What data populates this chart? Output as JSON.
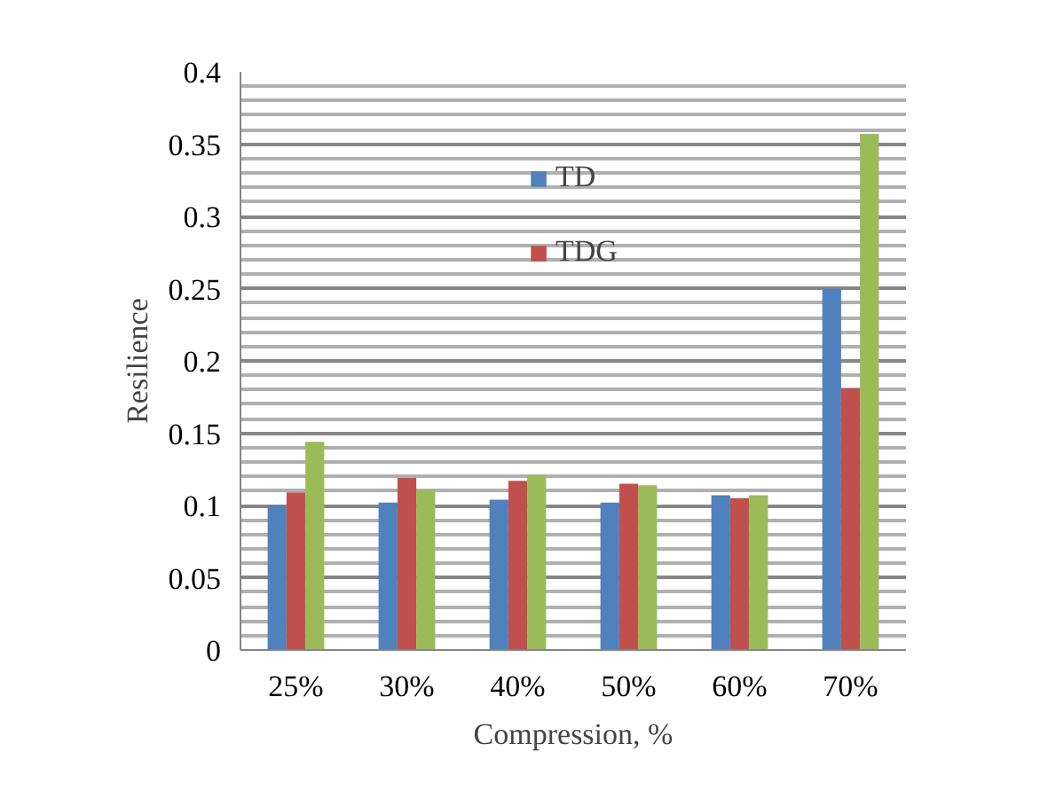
{
  "chart_data": {
    "type": "bar",
    "xlabel": "Compression, %",
    "ylabel": "Resilience",
    "categories": [
      "25%",
      "30%",
      "40%",
      "50%",
      "60%",
      "70%"
    ],
    "series": [
      {
        "name": "TD",
        "color": "#4f81bd",
        "values": [
          0.1,
          0.102,
          0.104,
          0.102,
          0.107,
          0.25
        ]
      },
      {
        "name": "TDG",
        "color": "#c0504d",
        "values": [
          0.109,
          0.119,
          0.117,
          0.115,
          0.105,
          0.181
        ]
      },
      {
        "color": "#9bbb59",
        "values": [
          0.144,
          0.111,
          0.121,
          0.114,
          0.107,
          0.357
        ]
      }
    ],
    "ylim": [
      0,
      0.4
    ],
    "yticks": [
      0,
      0.05,
      0.1,
      0.15,
      0.2,
      0.25,
      0.3,
      0.35,
      0.4
    ],
    "grid": "y",
    "legend": "top"
  }
}
